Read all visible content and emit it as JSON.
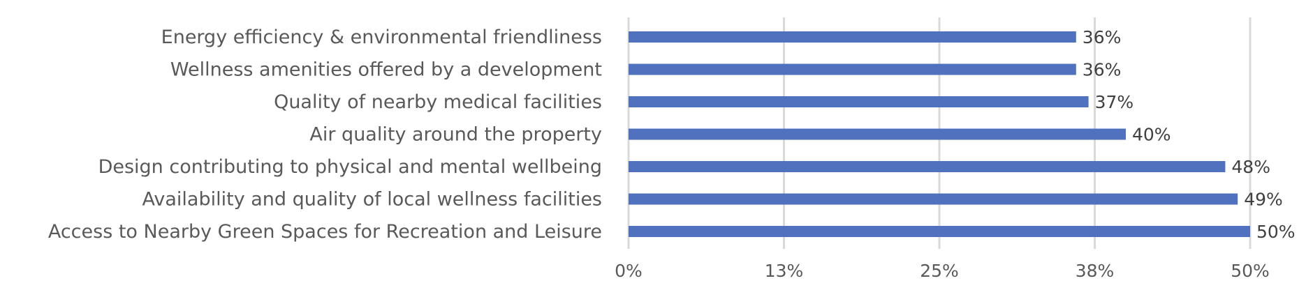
{
  "chart_data": {
    "type": "bar",
    "orientation": "horizontal",
    "title": "",
    "xlabel": "",
    "ylabel": "",
    "categories": [
      "Energy efficiency & environmental friendliness",
      "Wellness amenities offered by a development",
      "Quality of nearby medical facilities",
      "Air quality around the property",
      "Design contributing to physical and mental wellbeing",
      "Availability and quality of local wellness facilities",
      "Access to Nearby Green Spaces for Recreation and Leisure"
    ],
    "values": [
      36,
      36,
      37,
      40,
      48,
      49,
      50
    ],
    "data_labels": [
      "36%",
      "36%",
      "37%",
      "40%",
      "48%",
      "49%",
      "50%"
    ],
    "x_ticks": [
      "0%",
      "13%",
      "25%",
      "38%",
      "50%"
    ],
    "xlim": [
      0,
      50
    ],
    "grid": true,
    "legend": "none",
    "bar_color": "#4f71be"
  }
}
